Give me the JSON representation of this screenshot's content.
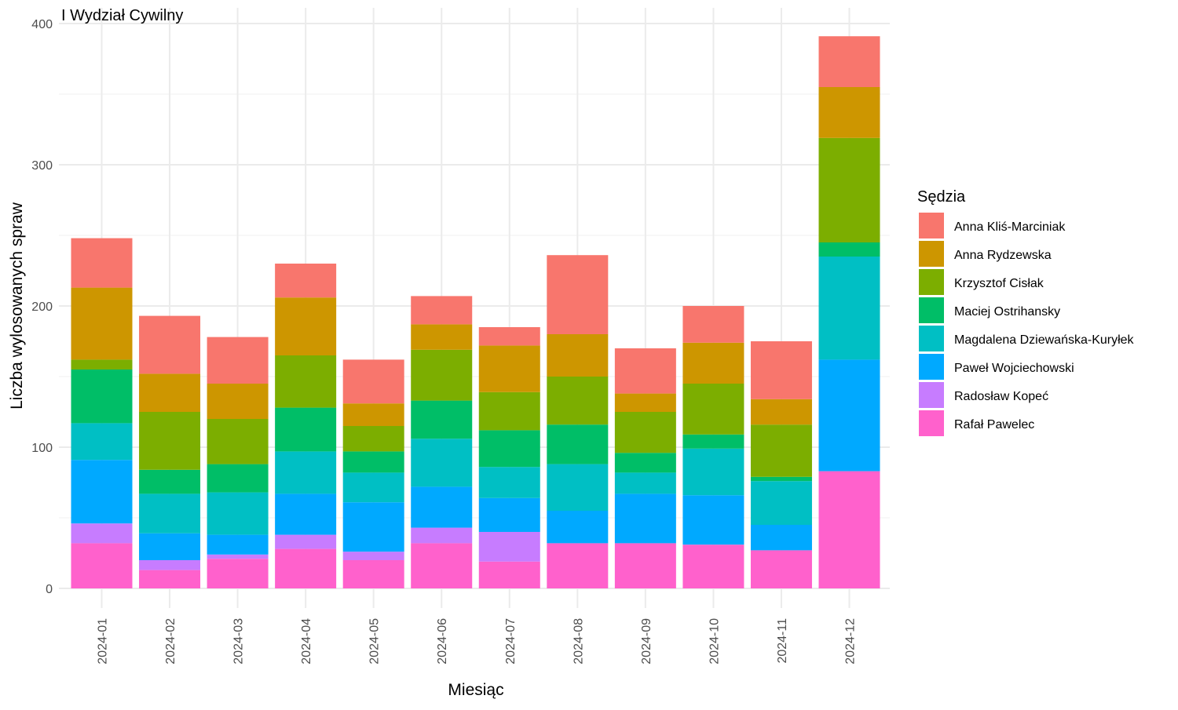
{
  "chart_data": {
    "type": "bar",
    "stacked": true,
    "title": "I Wydział Cywilny",
    "xlabel": "Miesiąc",
    "ylabel": "Liczba wylosowanych spraw",
    "ylim": [
      0,
      400
    ],
    "yticks": [
      0,
      100,
      200,
      300,
      400
    ],
    "grid": true,
    "legend_position": "right",
    "legend_title": "Sędzia",
    "categories": [
      "2024-01",
      "2024-02",
      "2024-03",
      "2024-04",
      "2024-05",
      "2024-06",
      "2024-07",
      "2024-08",
      "2024-09",
      "2024-10",
      "2024-11",
      "2024-12"
    ],
    "series": [
      {
        "name": "Anna Kliś-Marciniak",
        "color": "#F8766D",
        "values": [
          35,
          41,
          33,
          24,
          31,
          20,
          13,
          56,
          32,
          26,
          41,
          36
        ]
      },
      {
        "name": "Anna Rydzewska",
        "color": "#CD9600",
        "values": [
          51,
          27,
          25,
          41,
          16,
          18,
          33,
          30,
          13,
          29,
          18,
          36
        ]
      },
      {
        "name": "Krzysztof Cisłak",
        "color": "#7CAE00",
        "values": [
          7,
          41,
          32,
          37,
          18,
          36,
          27,
          34,
          29,
          36,
          37,
          74
        ]
      },
      {
        "name": "Maciej Ostrihansky",
        "color": "#00BE67",
        "values": [
          38,
          17,
          20,
          31,
          15,
          27,
          26,
          28,
          14,
          10,
          3,
          10
        ]
      },
      {
        "name": "Magdalena Dziewańska-Kuryłek",
        "color": "#00BFC4",
        "values": [
          26,
          28,
          30,
          30,
          21,
          34,
          22,
          33,
          15,
          33,
          31,
          73
        ]
      },
      {
        "name": "Paweł Wojciechowski",
        "color": "#00A9FF",
        "values": [
          45,
          19,
          14,
          29,
          35,
          29,
          24,
          23,
          35,
          35,
          18,
          79
        ]
      },
      {
        "name": "Radosław Kopeć",
        "color": "#C77CFF",
        "values": [
          14,
          7,
          3,
          10,
          6,
          11,
          21,
          0,
          0,
          0,
          0,
          0
        ]
      },
      {
        "name": "Rafał Pawelec",
        "color": "#FF61CC",
        "values": [
          32,
          13,
          21,
          28,
          20,
          32,
          19,
          32,
          32,
          31,
          27,
          83
        ]
      }
    ]
  }
}
